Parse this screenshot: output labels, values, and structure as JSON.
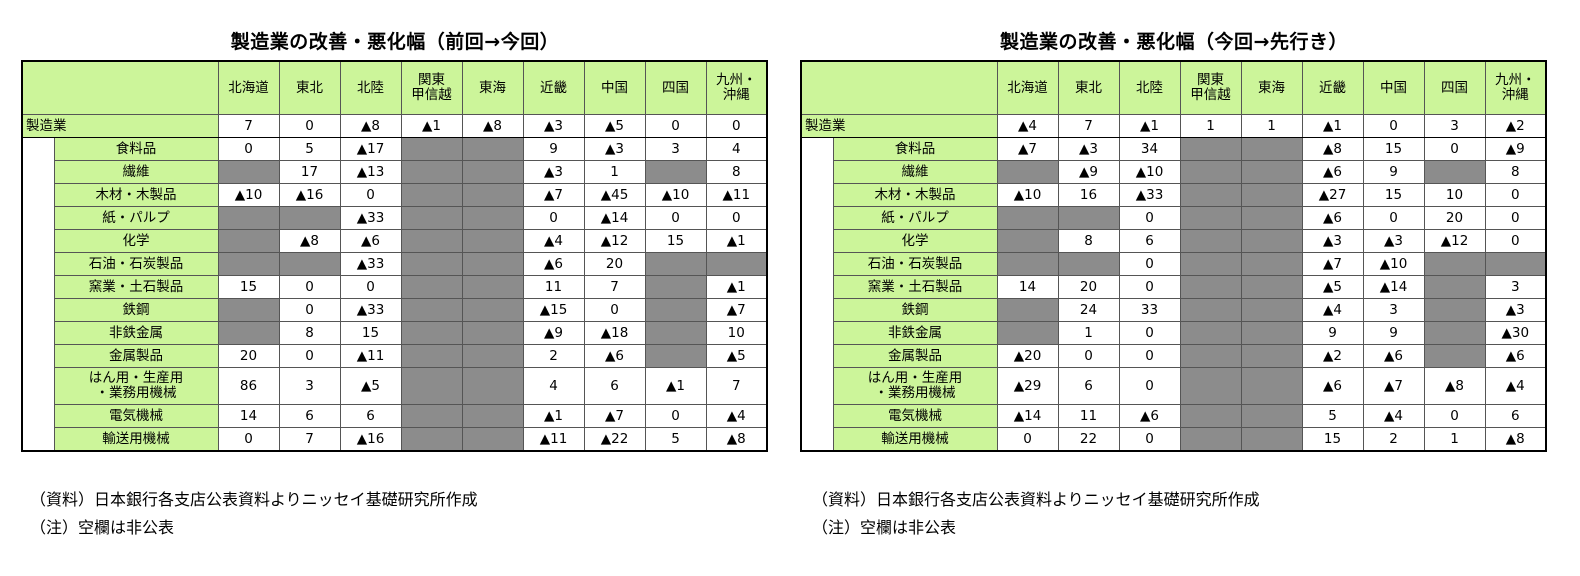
{
  "regions": [
    "北海道",
    "東北",
    "北陸",
    "関東\n甲信越",
    "東海",
    "近畿",
    "中国",
    "四国",
    "九州・\n沖縄"
  ],
  "notes": {
    "source": "（資料）日本銀行各支店公表資料よりニッセイ基礎研究所作成",
    "note": "（注）空欄は非公表"
  },
  "tables": [
    {
      "title": "製造業の改善・悪化幅（前回→今回）",
      "rows": [
        {
          "name": "製造業",
          "vals": [
            "7",
            "0",
            "▲8",
            "▲1",
            "▲8",
            "▲3",
            "▲5",
            "0",
            "0"
          ]
        },
        {
          "name": "食料品",
          "vals": [
            "0",
            "5",
            "▲17",
            null,
            null,
            "9",
            "▲3",
            "3",
            "4"
          ]
        },
        {
          "name": "繊維",
          "vals": [
            null,
            "17",
            "▲13",
            null,
            null,
            "▲3",
            "1",
            null,
            "8"
          ]
        },
        {
          "name": "木材・木製品",
          "vals": [
            "▲10",
            "▲16",
            "0",
            null,
            null,
            "▲7",
            "▲45",
            "▲10",
            "▲11"
          ]
        },
        {
          "name": "紙・パルプ",
          "vals": [
            null,
            null,
            "▲33",
            null,
            null,
            "0",
            "▲14",
            "0",
            "0"
          ]
        },
        {
          "name": "化学",
          "vals": [
            null,
            "▲8",
            "▲6",
            null,
            null,
            "▲4",
            "▲12",
            "15",
            "▲1"
          ]
        },
        {
          "name": "石油・石炭製品",
          "vals": [
            null,
            null,
            "▲33",
            null,
            null,
            "▲6",
            "20",
            null,
            null
          ]
        },
        {
          "name": "窯業・土石製品",
          "vals": [
            "15",
            "0",
            "0",
            null,
            null,
            "11",
            "7",
            null,
            "▲1"
          ]
        },
        {
          "name": "鉄鋼",
          "vals": [
            null,
            "0",
            "▲33",
            null,
            null,
            "▲15",
            "0",
            null,
            "▲7"
          ]
        },
        {
          "name": "非鉄金属",
          "vals": [
            null,
            "8",
            "15",
            null,
            null,
            "▲9",
            "▲18",
            null,
            "10"
          ]
        },
        {
          "name": "金属製品",
          "vals": [
            "20",
            "0",
            "▲11",
            null,
            null,
            "2",
            "▲6",
            null,
            "▲5"
          ]
        },
        {
          "name": "はん用・生産用\n・業務用機械",
          "vals": [
            "86",
            "3",
            "▲5",
            null,
            null,
            "4",
            "6",
            "▲1",
            "7"
          ]
        },
        {
          "name": "電気機械",
          "vals": [
            "14",
            "6",
            "6",
            null,
            null,
            "▲1",
            "▲7",
            "0",
            "▲4"
          ]
        },
        {
          "name": "輸送用機械",
          "vals": [
            "0",
            "7",
            "▲16",
            null,
            null,
            "▲11",
            "▲22",
            "5",
            "▲8"
          ]
        }
      ]
    },
    {
      "title": "製造業の改善・悪化幅（今回→先行き）",
      "rows": [
        {
          "name": "製造業",
          "vals": [
            "▲4",
            "7",
            "▲1",
            "1",
            "1",
            "▲1",
            "0",
            "3",
            "▲2"
          ]
        },
        {
          "name": "食料品",
          "vals": [
            "▲7",
            "▲3",
            "34",
            null,
            null,
            "▲8",
            "15",
            "0",
            "▲9"
          ]
        },
        {
          "name": "繊維",
          "vals": [
            null,
            "▲9",
            "▲10",
            null,
            null,
            "▲6",
            "9",
            null,
            "8"
          ]
        },
        {
          "name": "木材・木製品",
          "vals": [
            "▲10",
            "16",
            "▲33",
            null,
            null,
            "▲27",
            "15",
            "10",
            "0"
          ]
        },
        {
          "name": "紙・パルプ",
          "vals": [
            null,
            null,
            "0",
            null,
            null,
            "▲6",
            "0",
            "20",
            "0"
          ]
        },
        {
          "name": "化学",
          "vals": [
            null,
            "8",
            "6",
            null,
            null,
            "▲3",
            "▲3",
            "▲12",
            "0"
          ]
        },
        {
          "name": "石油・石炭製品",
          "vals": [
            null,
            null,
            "0",
            null,
            null,
            "▲7",
            "▲10",
            null,
            null
          ]
        },
        {
          "name": "窯業・土石製品",
          "vals": [
            "14",
            "20",
            "0",
            null,
            null,
            "▲5",
            "▲14",
            null,
            "3"
          ]
        },
        {
          "name": "鉄鋼",
          "vals": [
            null,
            "24",
            "33",
            null,
            null,
            "▲4",
            "3",
            null,
            "▲3"
          ]
        },
        {
          "name": "非鉄金属",
          "vals": [
            null,
            "1",
            "0",
            null,
            null,
            "9",
            "9",
            null,
            "▲30"
          ]
        },
        {
          "name": "金属製品",
          "vals": [
            "▲20",
            "0",
            "0",
            null,
            null,
            "▲2",
            "▲6",
            null,
            "▲6"
          ]
        },
        {
          "name": "はん用・生産用\n・業務用機械",
          "vals": [
            "▲29",
            "6",
            "0",
            null,
            null,
            "▲6",
            "▲7",
            "▲8",
            "▲4"
          ]
        },
        {
          "name": "電気機械",
          "vals": [
            "▲14",
            "11",
            "▲6",
            null,
            null,
            "5",
            "▲4",
            "0",
            "6"
          ]
        },
        {
          "name": "輸送用機械",
          "vals": [
            "0",
            "22",
            "0",
            null,
            null,
            "15",
            "2",
            "1",
            "▲8"
          ]
        }
      ]
    }
  ],
  "colors": {
    "label_bg": "#ccf59a",
    "not_disclosed": "#8c8c8c"
  }
}
